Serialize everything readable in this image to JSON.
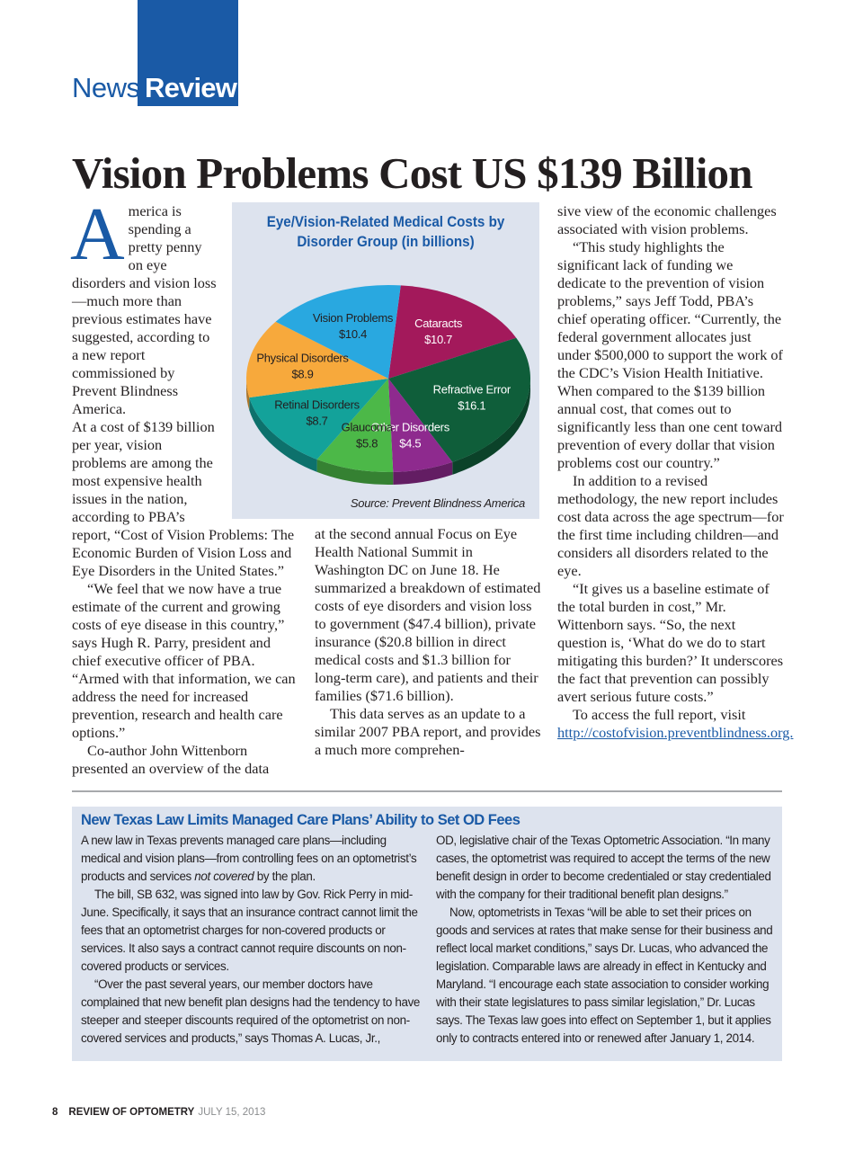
{
  "header": {
    "section": "News",
    "section_bold": "Review"
  },
  "article": {
    "title": "Vision Problems Cost US $139 Billion",
    "drop_cap": "A",
    "columns": [
      [
        [
          "merica is spending a pretty penny on eye disorders and vision loss—much more than previous estimates have suggested, according to a new report commissioned by Prevent Blindness America."
        ],
        [
          "At a cost of $139 billion per year, vision problems are among the most expensive health issues in the nation, according to PBA’s report, “Cost of Vision Problems: The Economic Burden of Vision Loss and Eye Disorders in the United States.”"
        ],
        [
          "“We feel that we now have a true estimate of the current and growing costs of eye disease in this country,” says Hugh R. Parry, president and chief executive officer of PBA. “Armed with that information, we can address the need for increased prevention, research and health care options.”"
        ],
        [
          "Co-author John Wittenborn presented an overview of the data"
        ]
      ],
      [
        [
          "at the second annual Focus on Eye Health National Summit in Washington DC on June 18. He summarized a breakdown of estimated costs of eye disorders and vision loss to government ($47.4 billion), private insurance ($20.8 billion in direct medical costs and $1.3 billion for long-term care), and patients and their families ($71.6 billion)."
        ],
        [
          "This data serves as an update to a similar 2007 PBA report, and provides a much more comprehen-"
        ]
      ],
      [
        [
          "sive view of the economic challenges associated with vision problems."
        ],
        [
          "“This study highlights the significant lack of funding we dedicate to the prevention of vision problems,” says Jeff Todd, PBA’s chief operating officer. “Currently, the federal government allocates just under $500,000 to support the work of the CDC’s Vision Health Initiative. When compared to the $139 billion annual cost, that comes out to significantly less than one cent toward prevention of every dollar that vision problems cost our country.”"
        ],
        [
          "In addition to a revised methodology, the new report includes cost data across the age spectrum—for the first time including children—and considers all disorders related to the eye."
        ],
        [
          "“It gives us a baseline estimate of the total burden in cost,” Mr. Wittenborn says. “So, the next question is, ‘What do we do to start mitigating this burden?’ It underscores the fact that prevention can possibly avert serious future costs.”"
        ],
        [
          "To access the full report, visit ",
          "http://costofvision.preventblindness.org."
        ]
      ]
    ]
  },
  "chart_data": {
    "type": "pie",
    "title": "Eye/Vision-Related Medical Costs by Disorder Group (in billions)",
    "categories": [
      "Cataracts",
      "Refractive Error",
      "Other Disorders",
      "Glaucoma",
      "Retinal Disorders",
      "Physical Disorders",
      "Vision Problems"
    ],
    "values": [
      10.7,
      16.1,
      4.5,
      5.8,
      8.7,
      8.9,
      10.4
    ],
    "value_labels": [
      "$10.7",
      "$16.1",
      "$4.5",
      "$5.8",
      "$8.7",
      "$8.9",
      "$10.4"
    ],
    "colors": [
      "#a3195b",
      "#0f5e3a",
      "#8e2a8e",
      "#4cb848",
      "#13a29a",
      "#f7a93c",
      "#29a8e0"
    ],
    "source": "Source: Prevent Blindness America"
  },
  "sidebar": {
    "title": "New Texas Law Limits Managed Care Plans’ Ability to Set OD Fees",
    "columns": [
      [
        [
          "A new law in Texas prevents managed care plans—including medical and vision plans—from controlling fees on an optometrist’s products and services ",
          "not covered",
          " by the plan."
        ],
        [
          "The bill, SB 632, was signed into law by Gov. Rick Perry in mid-June. Specifically, it says that an insurance contract cannot limit the fees that an optometrist charges for non-covered products or services. It also says a contract cannot require discounts on non-covered products or services."
        ],
        [
          "“Over the past several years, our member doctors have complained that new benefit plan designs had the tendency to have steeper and steeper discounts required of the optometrist on non-covered services and products,” says Thomas A. Lucas, Jr.,"
        ]
      ],
      [
        [
          "OD, legislative chair of the Texas Optometric Association. “In many cases, the optometrist was required to accept the terms of the new benefit design in order to become credentialed or stay credentialed with the company for their traditional benefit plan designs.”"
        ],
        [
          "Now, optometrists in Texas “will be able to set their prices on goods and services at rates that make sense for their business and reflect local market conditions,” says Dr. Lucas, who advanced the legislation. Comparable laws are already in effect in Kentucky and Maryland. “I encourage each state association to consider working with their state legislatures to pass similar legislation,” Dr. Lucas says. The Texas law goes into effect on September 1, but it applies only to contracts entered into or renewed after January 1, 2014."
        ]
      ]
    ]
  },
  "footer": {
    "page": "8",
    "publication": "REVIEW OF OPTOMETRY",
    "date": "JULY 15, 2013"
  }
}
